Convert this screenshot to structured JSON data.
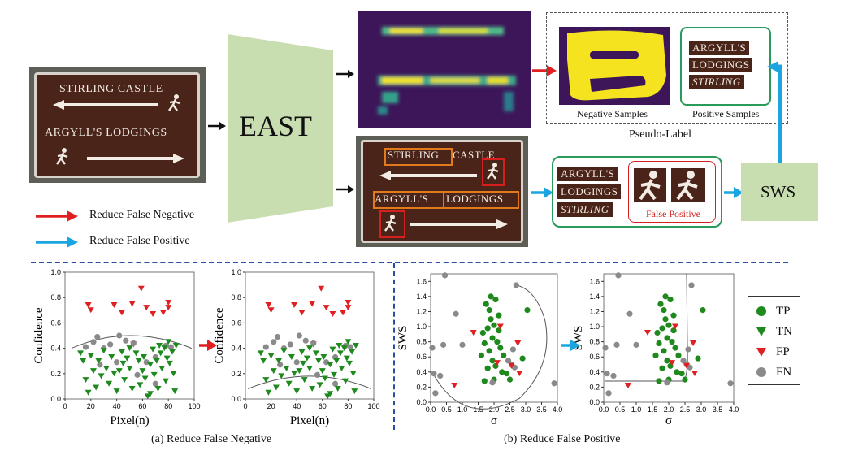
{
  "sign": {
    "line1": "STIRLING CASTLE",
    "line2": "ARGYLL'S LODGINGS",
    "box_stirling": "STIRLING",
    "word_castle": "CASTLE",
    "box_argylls": "ARGYLL'S",
    "box_lodgings": "LODGINGS"
  },
  "east_label": "EAST",
  "sws_label": "SWS",
  "negative_samples": "Negative Samples",
  "positive_samples": "Positive Samples",
  "pseudo_label": "Pseudo-Label",
  "false_positive": "False Positive",
  "tiles": [
    "ARGYLL'S",
    "LODGINGS",
    "STIRLING"
  ],
  "legend": {
    "reduce_fn": "Reduce False Negative",
    "reduce_fp": "Reduce False Positive"
  },
  "caption_a": "(a) Reduce False Negative",
  "caption_b": "(b) Reduce False Positive",
  "class_legend": [
    {
      "name": "TP",
      "color": "#1e8a1e",
      "shape": "circle"
    },
    {
      "name": "TN",
      "color": "#1e8a1e",
      "shape": "triangle-down"
    },
    {
      "name": "FP",
      "color": "#e02020",
      "shape": "triangle-down"
    },
    {
      "name": "FN",
      "color": "#8a8a8a",
      "shape": "circle"
    }
  ],
  "colors": {
    "red_arrow": "#e02020",
    "blue_arrow": "#1aa5e0",
    "east": "#c9deb0",
    "sws": "#c9deb0",
    "green_border": "#2a9a5a"
  },
  "chart_data": [
    {
      "type": "scatter",
      "xlabel": "Pixel(n)",
      "ylabel": "Confidence",
      "xlim": [
        0,
        100
      ],
      "ylim": [
        0,
        1.0
      ],
      "xticks": [
        "0",
        "20",
        "40",
        "60",
        "80",
        "100"
      ],
      "yticks": [
        "0.0",
        "0.2",
        "0.4",
        "0.6",
        "0.8",
        "1.0"
      ],
      "series": [
        {
          "name": "FP",
          "points": [
            [
              18,
              0.74
            ],
            [
              20,
              0.7
            ],
            [
              38,
              0.74
            ],
            [
              44,
              0.68
            ],
            [
              52,
              0.75
            ],
            [
              59,
              0.87
            ],
            [
              63,
              0.72
            ],
            [
              68,
              0.67
            ],
            [
              76,
              0.68
            ],
            [
              80,
              0.76
            ],
            [
              80,
              0.72
            ],
            [
              53,
              0.43
            ]
          ]
        },
        {
          "name": "FN",
          "points": [
            [
              16,
              0.41
            ],
            [
              22,
              0.45
            ],
            [
              25,
              0.49
            ],
            [
              30,
              0.4
            ],
            [
              35,
              0.43
            ],
            [
              40,
              0.29
            ],
            [
              47,
              0.46
            ],
            [
              53,
              0.44
            ],
            [
              56,
              0.19
            ],
            [
              63,
              0.29
            ],
            [
              70,
              0.33
            ],
            [
              78,
              0.42
            ],
            [
              82,
              0.41
            ],
            [
              70,
              0.12
            ],
            [
              27,
              0.27
            ],
            [
              42,
              0.5
            ]
          ]
        },
        {
          "name": "TN",
          "points": [
            [
              12,
              0.36
            ],
            [
              14,
              0.3
            ],
            [
              16,
              0.15
            ],
            [
              20,
              0.34
            ],
            [
              22,
              0.22
            ],
            [
              24,
              0.09
            ],
            [
              26,
              0.3
            ],
            [
              28,
              0.18
            ],
            [
              30,
              0.38
            ],
            [
              32,
              0.24
            ],
            [
              34,
              0.12
            ],
            [
              36,
              0.33
            ],
            [
              38,
              0.2
            ],
            [
              40,
              0.06
            ],
            [
              44,
              0.37
            ],
            [
              45,
              0.28
            ],
            [
              46,
              0.15
            ],
            [
              48,
              0.32
            ],
            [
              50,
              0.24
            ],
            [
              52,
              0.08
            ],
            [
              55,
              0.36
            ],
            [
              57,
              0.3
            ],
            [
              58,
              0.11
            ],
            [
              60,
              0.22
            ],
            [
              61,
              0.33
            ],
            [
              62,
              0.16
            ],
            [
              64,
              0.02
            ],
            [
              66,
              0.27
            ],
            [
              68,
              0.39
            ],
            [
              69,
              0.19
            ],
            [
              71,
              0.3
            ],
            [
              72,
              0.08
            ],
            [
              74,
              0.36
            ],
            [
              75,
              0.24
            ],
            [
              77,
              0.4
            ],
            [
              78,
              0.14
            ],
            [
              79,
              0.32
            ],
            [
              80,
              0.45
            ],
            [
              81,
              0.28
            ],
            [
              83,
              0.37
            ],
            [
              84,
              0.2
            ],
            [
              85,
              0.06
            ],
            [
              86,
              0.42
            ],
            [
              18,
              0.05
            ],
            [
              42,
              0.22
            ],
            [
              50,
              0.4
            ],
            [
              66,
              0.04
            ],
            [
              73,
              0.42
            ]
          ]
        }
      ],
      "boundary": "arc-high"
    },
    {
      "type": "scatter",
      "xlabel": "Pixel(n)",
      "ylabel": "Confidence",
      "xlim": [
        0,
        100
      ],
      "ylim": [
        0,
        1.0
      ],
      "xticks": [
        "0",
        "20",
        "40",
        "60",
        "80",
        "100"
      ],
      "yticks": [
        "0.0",
        "0.2",
        "0.4",
        "0.6",
        "0.8",
        "1.0"
      ],
      "series": "same-as-0",
      "boundary": "arc-low"
    },
    {
      "type": "scatter",
      "xlabel": "σ",
      "ylabel": "SWS",
      "xlim": [
        0,
        4.0
      ],
      "ylim": [
        0,
        1.7
      ],
      "xticks": [
        "0.0",
        "0.5",
        "1.0",
        "1.5",
        "2.0",
        "2.5",
        "3.0",
        "3.5",
        "4.0"
      ],
      "yticks": [
        "0.0",
        "0.2",
        "0.4",
        "0.6",
        "0.8",
        "1.0",
        "1.2",
        "1.4",
        "1.6"
      ],
      "series": [
        {
          "name": "TP",
          "points": [
            [
              1.75,
              1.3
            ],
            [
              1.85,
              1.22
            ],
            [
              2.05,
              1.36
            ],
            [
              1.9,
              1.1
            ],
            [
              2.0,
              1.02
            ],
            [
              1.8,
              0.98
            ],
            [
              2.15,
              0.95
            ],
            [
              1.95,
              0.85
            ],
            [
              2.1,
              0.8
            ],
            [
              1.7,
              0.78
            ],
            [
              2.2,
              0.72
            ],
            [
              1.85,
              0.68
            ],
            [
              2.3,
              0.62
            ],
            [
              1.95,
              0.55
            ],
            [
              2.05,
              0.48
            ],
            [
              1.8,
              0.45
            ],
            [
              2.25,
              0.4
            ],
            [
              2.4,
              0.38
            ],
            [
              2.0,
              0.3
            ],
            [
              1.7,
              0.28
            ],
            [
              2.5,
              0.3
            ],
            [
              2.9,
              0.58
            ],
            [
              3.05,
              1.22
            ],
            [
              1.65,
              0.92
            ],
            [
              1.6,
              0.62
            ],
            [
              2.15,
              1.15
            ],
            [
              1.9,
              1.4
            ]
          ]
        },
        {
          "name": "FN",
          "points": [
            [
              0.45,
              1.68
            ],
            [
              2.7,
              1.55
            ],
            [
              0.8,
              1.17
            ],
            [
              0.4,
              0.76
            ],
            [
              1.0,
              0.76
            ],
            [
              0.1,
              0.38
            ],
            [
              0.3,
              0.35
            ],
            [
              0.05,
              0.72
            ],
            [
              3.9,
              0.25
            ],
            [
              2.45,
              0.55
            ],
            [
              2.6,
              0.7
            ],
            [
              1.95,
              0.26
            ],
            [
              2.55,
              0.5
            ],
            [
              2.65,
              0.46
            ],
            [
              0.15,
              0.12
            ]
          ]
        },
        {
          "name": "FP",
          "points": [
            [
              1.35,
              0.92
            ],
            [
              2.55,
              0.48
            ],
            [
              2.75,
              0.78
            ],
            [
              2.2,
              1.0
            ],
            [
              0.75,
              0.22
            ],
            [
              2.8,
              0.38
            ],
            [
              2.1,
              0.52
            ]
          ]
        }
      ],
      "boundary": "ellipse"
    },
    {
      "type": "scatter",
      "xlabel": "σ",
      "ylabel": "SWS",
      "xlim": [
        0,
        4.0
      ],
      "ylim": [
        0,
        1.7
      ],
      "xticks": [
        "0.0",
        "0.5",
        "1.0",
        "1.5",
        "2.0",
        "2.5",
        "3.0",
        "3.5",
        "4.0"
      ],
      "yticks": [
        "0.0",
        "0.2",
        "0.4",
        "0.6",
        "0.8",
        "1.0",
        "1.2",
        "1.4",
        "1.6"
      ],
      "series": "same-as-2",
      "boundary": "corner"
    }
  ]
}
